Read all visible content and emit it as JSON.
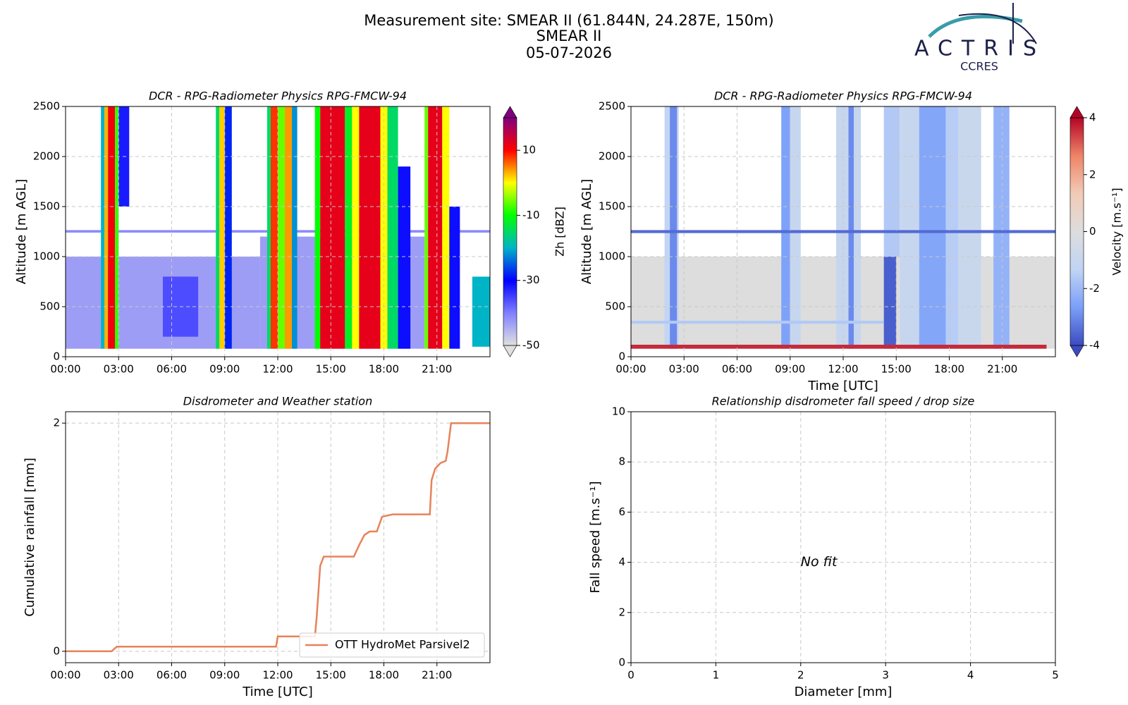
{
  "header": {
    "title": [
      "Measurement site: SMEAR II (61.844N, 24.287E, 150m)",
      "SMEAR II",
      "05-07-2026"
    ],
    "logo": {
      "name": "ACTRIS",
      "subtitle": "CCRES"
    }
  },
  "chart_data": [
    {
      "type": "heatmap",
      "title": "DCR - RPG-Radiometer Physics RPG-FMCW-94",
      "ylabel": "Altitude [m AGL]",
      "xlim": [
        0,
        24
      ],
      "xticks": [
        {
          "value": 0,
          "label": "00:00"
        },
        {
          "value": 3,
          "label": "03:00"
        },
        {
          "value": 6,
          "label": "06:00"
        },
        {
          "value": 9,
          "label": "09:00"
        },
        {
          "value": 12,
          "label": "12:00"
        },
        {
          "value": 15,
          "label": "15:00"
        },
        {
          "value": 18,
          "label": "18:00"
        },
        {
          "value": 21,
          "label": "21:00"
        }
      ],
      "ylim": [
        0,
        2500
      ],
      "yticks": [
        0,
        500,
        1000,
        1500,
        2000,
        2500
      ],
      "grid": true,
      "colorbar": {
        "label": "Zh [dBZ]",
        "lim": [
          -50,
          20
        ],
        "ticks": [
          -50,
          -30,
          -10,
          10
        ],
        "colormap": [
          "#e0e0e0",
          "#8080ff",
          "#0000ff",
          "#00b4c8",
          "#00ff00",
          "#ffff00",
          "#ff0000",
          "#800080"
        ]
      },
      "cells": [
        {
          "x0": 0,
          "x1": 11,
          "y0": 80,
          "y1": 1000,
          "value": -43
        },
        {
          "x0": 11,
          "x1": 20.3,
          "y0": 80,
          "y1": 1200,
          "value": -43
        },
        {
          "x0": 0,
          "x1": 24,
          "y0": 1240,
          "y1": 1265,
          "value": -41
        },
        {
          "x0": 5.5,
          "x1": 7.5,
          "y0": 200,
          "y1": 800,
          "value": -36
        },
        {
          "x0": 2.0,
          "x1": 2.2,
          "y0": 80,
          "y1": 2500,
          "value": -20
        },
        {
          "x0": 2.2,
          "x1": 2.4,
          "y0": 80,
          "y1": 2500,
          "value": 3
        },
        {
          "x0": 2.4,
          "x1": 2.8,
          "y0": 80,
          "y1": 2500,
          "value": 11
        },
        {
          "x0": 2.8,
          "x1": 3.0,
          "y0": 80,
          "y1": 2500,
          "value": -8
        },
        {
          "x0": 3.0,
          "x1": 3.6,
          "y0": 1500,
          "y1": 2500,
          "value": -32
        },
        {
          "x0": 8.5,
          "x1": 8.7,
          "y0": 80,
          "y1": 2500,
          "value": -15
        },
        {
          "x0": 8.7,
          "x1": 9.0,
          "y0": 80,
          "y1": 2500,
          "value": 2
        },
        {
          "x0": 9.0,
          "x1": 9.4,
          "y0": 80,
          "y1": 2500,
          "value": -28
        },
        {
          "x0": 11.4,
          "x1": 11.6,
          "y0": 80,
          "y1": 2500,
          "value": -15
        },
        {
          "x0": 11.6,
          "x1": 12.0,
          "y0": 80,
          "y1": 2500,
          "value": 8
        },
        {
          "x0": 12.0,
          "x1": 12.4,
          "y0": 80,
          "y1": 2500,
          "value": -6
        },
        {
          "x0": 12.4,
          "x1": 12.8,
          "y0": 80,
          "y1": 2500,
          "value": 4
        },
        {
          "x0": 12.8,
          "x1": 13.1,
          "y0": 80,
          "y1": 2500,
          "value": -22
        },
        {
          "x0": 14.1,
          "x1": 14.4,
          "y0": 80,
          "y1": 2500,
          "value": -10
        },
        {
          "x0": 14.4,
          "x1": 15.8,
          "y0": 80,
          "y1": 2500,
          "value": 12
        },
        {
          "x0": 15.8,
          "x1": 16.2,
          "y0": 80,
          "y1": 2500,
          "value": -12
        },
        {
          "x0": 16.2,
          "x1": 16.6,
          "y0": 80,
          "y1": 2500,
          "value": 0
        },
        {
          "x0": 16.6,
          "x1": 17.8,
          "y0": 80,
          "y1": 2500,
          "value": 12
        },
        {
          "x0": 17.8,
          "x1": 18.2,
          "y0": 80,
          "y1": 2500,
          "value": 0
        },
        {
          "x0": 18.2,
          "x1": 18.8,
          "y0": 80,
          "y1": 2500,
          "value": -15
        },
        {
          "x0": 18.8,
          "x1": 19.5,
          "y0": 80,
          "y1": 1900,
          "value": -31
        },
        {
          "x0": 20.3,
          "x1": 20.5,
          "y0": 80,
          "y1": 2500,
          "value": -6
        },
        {
          "x0": 20.5,
          "x1": 21.3,
          "y0": 80,
          "y1": 2500,
          "value": 12
        },
        {
          "x0": 21.3,
          "x1": 21.7,
          "y0": 80,
          "y1": 2500,
          "value": 0
        },
        {
          "x0": 21.7,
          "x1": 22.3,
          "y0": 80,
          "y1": 1500,
          "value": -31
        },
        {
          "x0": 23.0,
          "x1": 24,
          "y0": 100,
          "y1": 800,
          "value": -20
        }
      ]
    },
    {
      "type": "heatmap",
      "title": "DCR - RPG-Radiometer Physics RPG-FMCW-94",
      "ylabel": "Altitude [m AGL]",
      "xlabel": "Time [UTC]",
      "xlim": [
        0,
        24
      ],
      "xticks": [
        {
          "value": 0,
          "label": "00:00"
        },
        {
          "value": 3,
          "label": "03:00"
        },
        {
          "value": 6,
          "label": "06:00"
        },
        {
          "value": 9,
          "label": "09:00"
        },
        {
          "value": 12,
          "label": "12:00"
        },
        {
          "value": 15,
          "label": "15:00"
        },
        {
          "value": 18,
          "label": "18:00"
        },
        {
          "value": 21,
          "label": "21:00"
        }
      ],
      "ylim": [
        0,
        2500
      ],
      "yticks": [
        0,
        500,
        1000,
        1500,
        2000,
        2500
      ],
      "grid": true,
      "colorbar": {
        "label": "Velocity [m.s⁻¹]",
        "lim": [
          -4,
          4
        ],
        "ticks": [
          -4,
          -2,
          0,
          2,
          4
        ],
        "colormap": [
          "#3b4cc0",
          "#7b9ff9",
          "#c0d4f5",
          "#dddddd",
          "#f2cbb7",
          "#ee8468",
          "#b40426"
        ]
      },
      "cells": [
        {
          "x0": 0,
          "x1": 24,
          "y0": 80,
          "y1": 1000,
          "value": 0
        },
        {
          "x0": 1.9,
          "x1": 2.7,
          "y0": 80,
          "y1": 2500,
          "value": -1.2
        },
        {
          "x0": 2.2,
          "x1": 2.6,
          "y0": 80,
          "y1": 2500,
          "value": -3
        },
        {
          "x0": 8.5,
          "x1": 9.0,
          "y0": 80,
          "y1": 2500,
          "value": -2.6
        },
        {
          "x0": 9.0,
          "x1": 9.6,
          "y0": 80,
          "y1": 2500,
          "value": -1
        },
        {
          "x0": 11.6,
          "x1": 13.0,
          "y0": 80,
          "y1": 2500,
          "value": -1
        },
        {
          "x0": 12.3,
          "x1": 12.6,
          "y0": 80,
          "y1": 2500,
          "value": -3
        },
        {
          "x0": 14.3,
          "x1": 15.2,
          "y0": 1000,
          "y1": 2500,
          "value": -1.6
        },
        {
          "x0": 14.3,
          "x1": 15.0,
          "y0": 80,
          "y1": 1000,
          "value": -3.7
        },
        {
          "x0": 15.2,
          "x1": 16.4,
          "y0": 80,
          "y1": 2500,
          "value": -1
        },
        {
          "x0": 16.3,
          "x1": 17.8,
          "y0": 80,
          "y1": 2500,
          "value": -2.5
        },
        {
          "x0": 17.8,
          "x1": 18.5,
          "y0": 80,
          "y1": 2500,
          "value": -1.5
        },
        {
          "x0": 18.5,
          "x1": 19.8,
          "y0": 80,
          "y1": 2500,
          "value": -0.9
        },
        {
          "x0": 20.5,
          "x1": 21.4,
          "y0": 80,
          "y1": 2500,
          "value": -2.2
        },
        {
          "x0": 0,
          "x1": 24,
          "y0": 1235,
          "y1": 1265,
          "value": -3.5
        },
        {
          "x0": 0,
          "x1": 14.3,
          "y0": 330,
          "y1": 360,
          "value": -1.6
        },
        {
          "x0": 0,
          "x1": 23.5,
          "y0": 80,
          "y1": 120,
          "value": 3.6
        }
      ]
    },
    {
      "type": "line",
      "title": "Disdrometer and Weather station",
      "xlabel": "Time [UTC]",
      "ylabel": "Cumulative rainfall [mm]",
      "x": [
        0,
        2.6,
        2.9,
        11.9,
        12.0,
        14.1,
        14.2,
        14.4,
        14.6,
        14.9,
        16.3,
        16.6,
        16.9,
        17.2,
        17.6,
        17.9,
        18.5,
        20.6,
        20.7,
        20.9,
        21.2,
        21.5,
        21.6,
        21.8,
        24
      ],
      "series": [
        {
          "name": "OTT HydroMet Parsivel2",
          "color": "#e8825a",
          "values": [
            0,
            0,
            0.04,
            0.04,
            0.13,
            0.13,
            0.3,
            0.75,
            0.83,
            0.83,
            0.83,
            0.93,
            1.02,
            1.05,
            1.05,
            1.18,
            1.2,
            1.2,
            1.5,
            1.6,
            1.65,
            1.67,
            1.75,
            2.0,
            2.0
          ]
        }
      ],
      "xlim": [
        0,
        24
      ],
      "xticks": [
        {
          "value": 0,
          "label": "00:00"
        },
        {
          "value": 3,
          "label": "03:00"
        },
        {
          "value": 6,
          "label": "06:00"
        },
        {
          "value": 9,
          "label": "09:00"
        },
        {
          "value": 12,
          "label": "12:00"
        },
        {
          "value": 15,
          "label": "15:00"
        },
        {
          "value": 18,
          "label": "18:00"
        },
        {
          "value": 21,
          "label": "21:00"
        }
      ],
      "ylim": [
        -0.1,
        2.1
      ],
      "yticks": [
        0,
        2
      ],
      "grid": true,
      "legend": "lower right"
    },
    {
      "type": "scatter",
      "title": "Relationship disdrometer fall speed / drop size",
      "xlabel": "Diameter [mm]",
      "ylabel": "Fall speed [m.s⁻¹]",
      "xlim": [
        0,
        5
      ],
      "xticks": [
        0,
        1,
        2,
        3,
        4,
        5
      ],
      "ylim": [
        0,
        10
      ],
      "yticks": [
        0,
        2,
        4,
        6,
        8,
        10
      ],
      "grid": true,
      "annotation": "No fit"
    }
  ]
}
